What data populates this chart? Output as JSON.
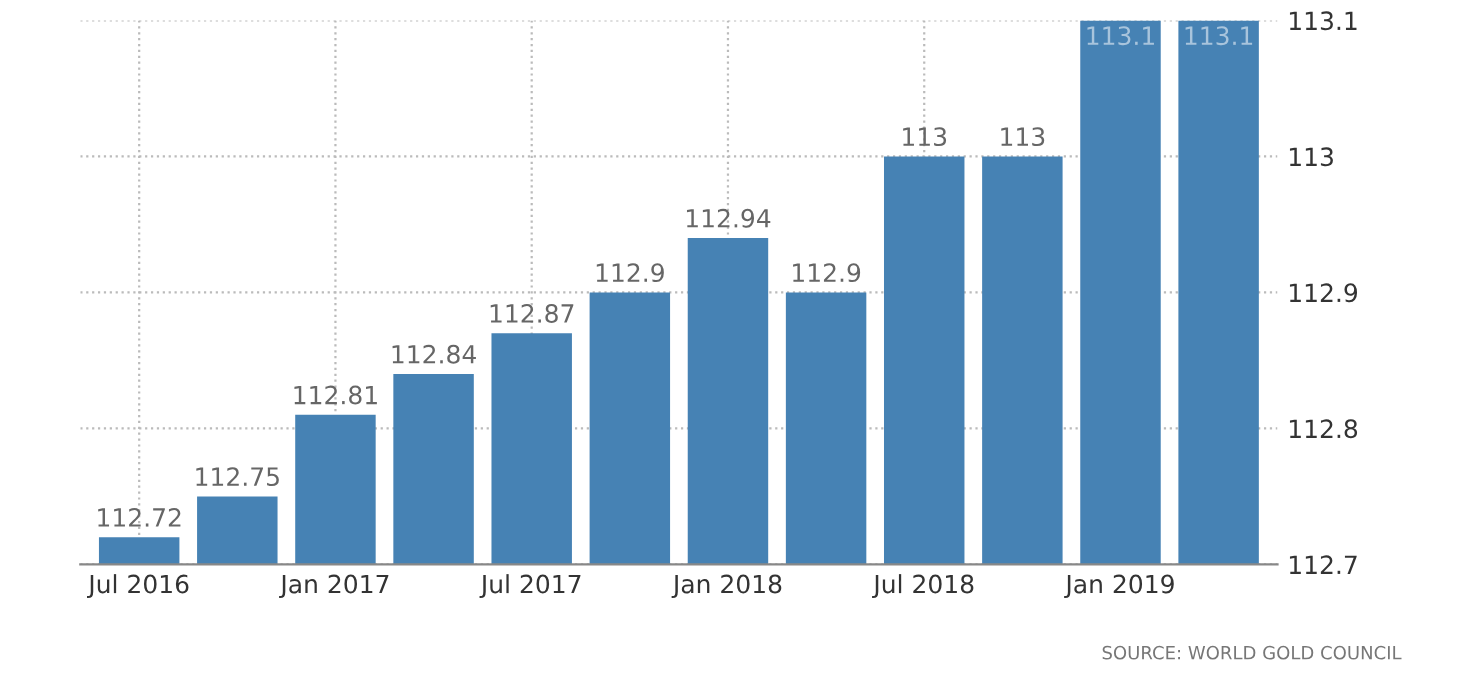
{
  "chart_data": {
    "type": "bar",
    "categories": [
      "Jul 2016",
      null,
      "Jan 2017",
      null,
      "Jul 2017",
      null,
      "Jan 2018",
      null,
      "Jul 2018",
      null,
      "Jan 2019",
      null
    ],
    "values": [
      112.72,
      112.75,
      112.81,
      112.84,
      112.87,
      112.9,
      112.94,
      112.9,
      113,
      113,
      113.1,
      113.1
    ],
    "color": "#4682b4",
    "ylim": [
      112.7,
      113.1
    ],
    "yticks": [
      112.7,
      112.8,
      112.9,
      113,
      113.1
    ],
    "grid": true,
    "data_labels": true,
    "annotations": [
      "SOURCE: WORLD GOLD COUNCIL"
    ]
  }
}
